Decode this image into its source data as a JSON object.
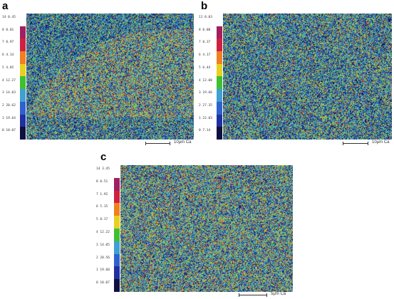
{
  "panels": [
    {
      "letter": "a",
      "scale_label": "10μm",
      "element": "Ca",
      "legend": [
        "14  0.45",
        "8  0.01",
        "7  0.97",
        "6  4.14",
        "5  4.05",
        "4  12.27",
        "3  14.03",
        "2  20.62",
        "1  19.64",
        "0  10.07"
      ],
      "pattern": "boundary"
    },
    {
      "letter": "b",
      "scale_label": "10μm",
      "element": "Ca",
      "legend": [
        "11  0.03",
        "8  0.00",
        "7  0.37",
        "6  4.17",
        "5  6.44",
        "4  12.00",
        "3  19.66",
        "2  27.35",
        "1  22.03",
        "0  7.14"
      ],
      "pattern": "uniform-dark"
    },
    {
      "letter": "c",
      "scale_label": "5μm",
      "element": "Ca",
      "legend": [
        "14  3.45",
        "8  0.51",
        "7  1.92",
        "6  5.15",
        "5  8.17",
        "4  12.22",
        "3  14.05",
        "2  20.56",
        "1  19.60",
        "0  10.07"
      ],
      "pattern": "uniform-bright"
    }
  ],
  "colors": {
    "colorbar": [
      "#ffffff",
      "#a02060",
      "#d02040",
      "#f08020",
      "#e8d020",
      "#40c030",
      "#40a0d0",
      "#3060d0",
      "#2030a0",
      "#101040"
    ]
  }
}
